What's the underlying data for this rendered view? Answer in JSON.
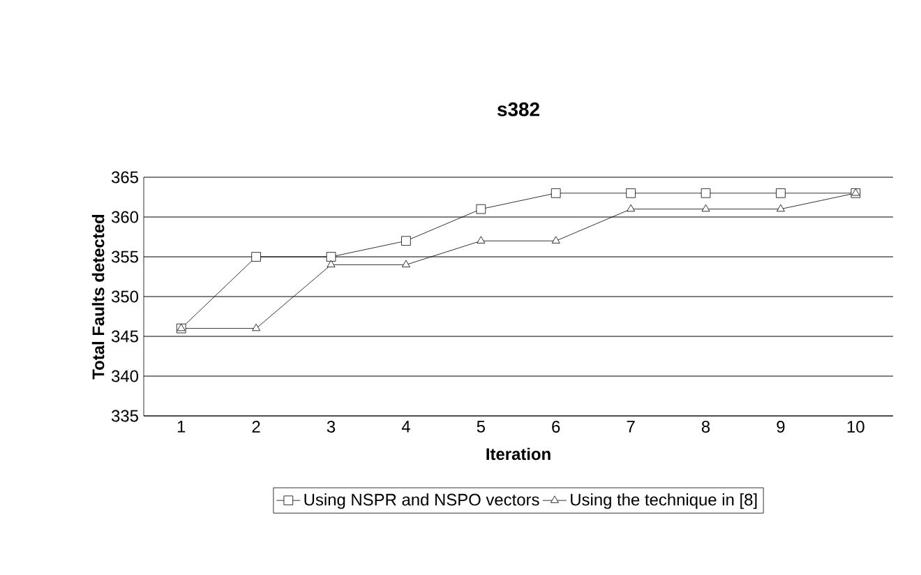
{
  "chart_data": {
    "type": "line",
    "title": "s382",
    "xlabel": "Iteration",
    "ylabel": "Total Faults detected",
    "categories": [
      "1",
      "2",
      "3",
      "4",
      "5",
      "6",
      "7",
      "8",
      "9",
      "10"
    ],
    "series": [
      {
        "name": "Using NSPR and NSPO vectors",
        "color": "#000000",
        "marker": "square",
        "values": [
          346,
          355,
          355,
          357,
          361,
          363,
          363,
          363,
          363,
          363
        ]
      },
      {
        "name": "Using the technique in [8]",
        "color": "#000000",
        "marker": "triangle",
        "values": [
          346,
          346,
          354,
          354,
          357,
          357,
          361,
          361,
          361,
          363
        ]
      }
    ],
    "ylim": [
      335,
      365
    ],
    "yticks": [
      335,
      340,
      345,
      350,
      355,
      360,
      365
    ],
    "grid": "y",
    "legend": "bottom",
    "line_style": "solid"
  }
}
